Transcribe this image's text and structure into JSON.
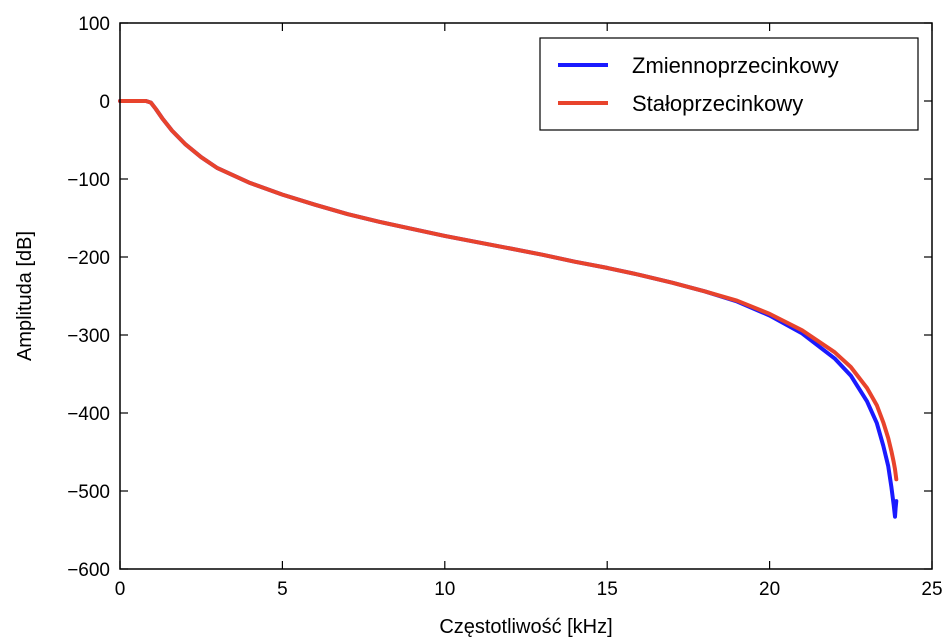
{
  "chart_data": {
    "type": "line",
    "title": "",
    "xlabel": "Częstotliwość [kHz]",
    "ylabel": "Amplituda [dB]",
    "xlim": [
      0,
      25
    ],
    "ylim": [
      -600,
      100
    ],
    "xticks": [
      0,
      5,
      10,
      15,
      20,
      25
    ],
    "yticks": [
      100,
      0,
      -100,
      -200,
      -300,
      -400,
      -500,
      -600
    ],
    "xtick_labels": [
      "0",
      "5",
      "10",
      "15",
      "20",
      "25"
    ],
    "ytick_labels": [
      "100",
      "0",
      "−100",
      "−200",
      "−300",
      "−400",
      "−500",
      "−600"
    ],
    "grid": false,
    "legend_position": "top-right",
    "series": [
      {
        "name": "Zmiennoprzecinkowy",
        "color": "#1a1aff",
        "x": [
          0,
          0.5,
          0.8,
          0.95,
          1.1,
          1.3,
          1.6,
          2.0,
          2.5,
          3.0,
          4.0,
          5.0,
          6.0,
          7.0,
          8.0,
          9.0,
          10.0,
          11.0,
          12.0,
          13.0,
          14.0,
          15.0,
          16.0,
          17.0,
          18.0,
          19.0,
          20.0,
          21.0,
          22.0,
          22.5,
          23.0,
          23.3,
          23.5,
          23.65,
          23.75,
          23.82,
          23.86,
          23.88,
          23.9
        ],
        "y": [
          0,
          0,
          0,
          -2,
          -10,
          -22,
          -38,
          -55,
          -72,
          -86,
          -105,
          -120,
          -133,
          -145,
          -155,
          -164,
          -173,
          -181,
          -189,
          -197,
          -206,
          -214,
          -223,
          -233,
          -244,
          -257,
          -275,
          -298,
          -330,
          -352,
          -385,
          -413,
          -442,
          -468,
          -495,
          -518,
          -533,
          -522,
          -513
        ]
      },
      {
        "name": "Stałoprzecinkowy",
        "color": "#e8432c",
        "x": [
          0,
          0.5,
          0.8,
          0.95,
          1.1,
          1.3,
          1.6,
          2.0,
          2.5,
          3.0,
          4.0,
          5.0,
          6.0,
          7.0,
          8.0,
          9.0,
          10.0,
          11.0,
          12.0,
          13.0,
          14.0,
          15.0,
          16.0,
          17.0,
          18.0,
          19.0,
          20.0,
          21.0,
          22.0,
          22.5,
          23.0,
          23.3,
          23.5,
          23.65,
          23.75,
          23.82,
          23.86,
          23.88,
          23.9
        ],
        "y": [
          0,
          0,
          0,
          -2,
          -10,
          -22,
          -38,
          -55,
          -72,
          -86,
          -105,
          -120,
          -133,
          -145,
          -155,
          -164,
          -173,
          -181,
          -189,
          -197,
          -206,
          -214,
          -223,
          -233,
          -244,
          -256,
          -273,
          -294,
          -322,
          -341,
          -368,
          -390,
          -412,
          -432,
          -449,
          -463,
          -472,
          -478,
          -485
        ]
      }
    ]
  }
}
